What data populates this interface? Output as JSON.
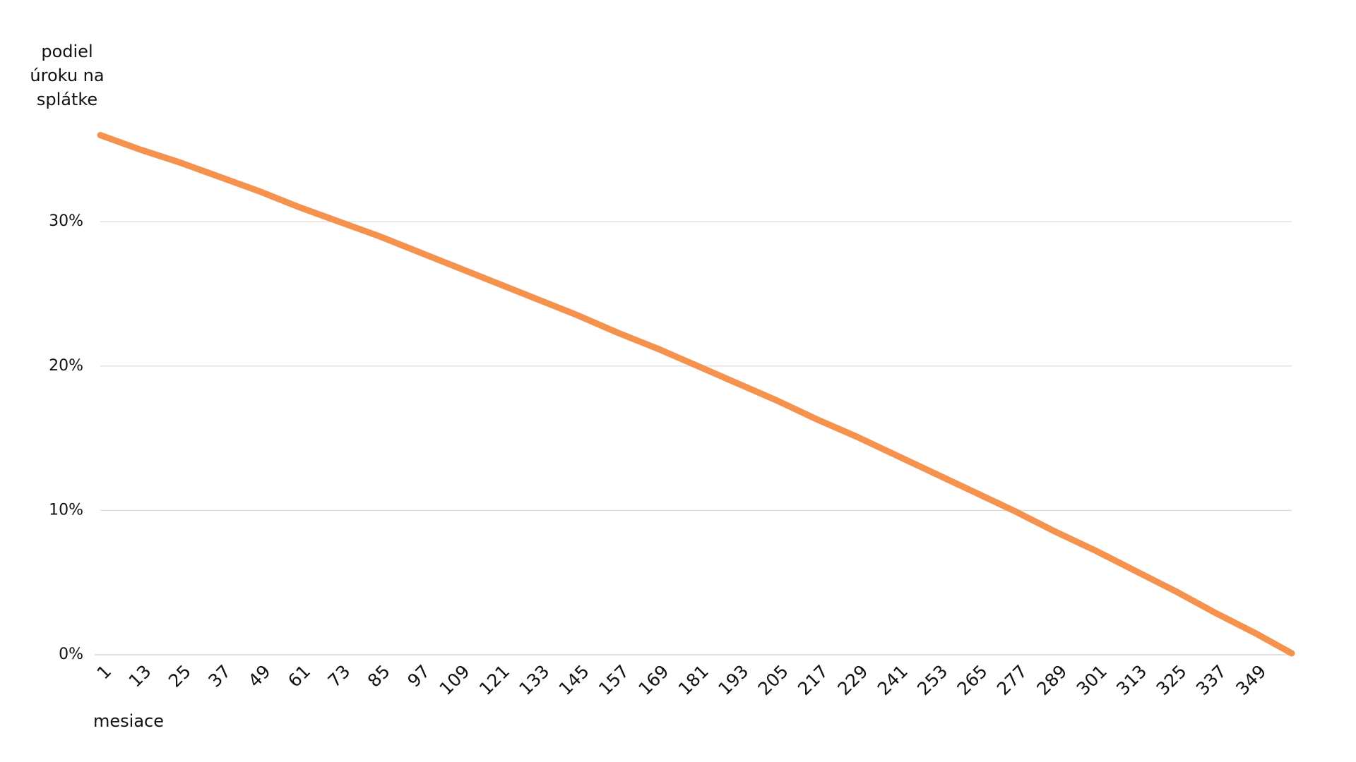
{
  "chart_data": {
    "type": "line",
    "y_label": "podiel úroku na splátke",
    "x_label": "mesiace",
    "x": [
      1,
      13,
      25,
      37,
      49,
      61,
      73,
      85,
      97,
      109,
      121,
      133,
      145,
      157,
      169,
      181,
      193,
      205,
      217,
      229,
      241,
      253,
      265,
      277,
      289,
      301,
      313,
      325,
      337,
      349,
      360
    ],
    "series": [
      {
        "color": "#f5924e",
        "values": [
          36.0,
          35.0,
          34.1,
          33.1,
          32.1,
          31.0,
          30.0,
          29.0,
          27.9,
          26.8,
          25.7,
          24.6,
          23.5,
          22.3,
          21.2,
          20.0,
          18.8,
          17.6,
          16.3,
          15.1,
          13.8,
          12.5,
          11.2,
          9.9,
          8.5,
          7.2,
          5.8,
          4.4,
          2.9,
          1.5,
          0.1
        ]
      }
    ],
    "xlim": [
      1,
      360
    ],
    "xticks": [
      1,
      13,
      25,
      37,
      49,
      61,
      73,
      85,
      97,
      109,
      121,
      133,
      145,
      157,
      169,
      181,
      193,
      205,
      217,
      229,
      241,
      253,
      265,
      277,
      289,
      301,
      313,
      325,
      337,
      349
    ],
    "ylim": [
      0,
      37
    ],
    "yticks": [
      {
        "value": 0,
        "label": "0%"
      },
      {
        "value": 10,
        "label": "10%"
      },
      {
        "value": 20,
        "label": "20%"
      },
      {
        "value": 30,
        "label": "30%"
      }
    ],
    "grid": true
  }
}
